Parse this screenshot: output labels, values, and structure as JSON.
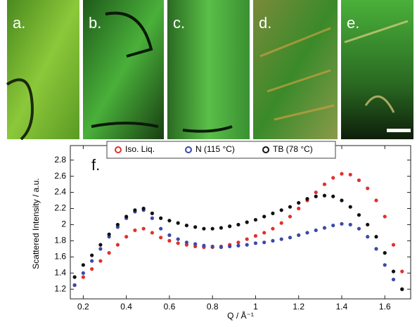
{
  "panel_labels": [
    "a.",
    "b.",
    "c.",
    "d.",
    "e."
  ],
  "chart_data": {
    "type": "scatter",
    "panel_label": "f.",
    "x_label": "Q / Å⁻¹",
    "y_label": "Scattered Intensity / a.u.",
    "x": [
      0.16,
      0.2,
      0.24,
      0.28,
      0.32,
      0.36,
      0.4,
      0.44,
      0.48,
      0.52,
      0.56,
      0.6,
      0.64,
      0.68,
      0.72,
      0.76,
      0.8,
      0.84,
      0.88,
      0.92,
      0.96,
      1.0,
      1.04,
      1.08,
      1.12,
      1.16,
      1.2,
      1.24,
      1.28,
      1.32,
      1.36,
      1.4,
      1.44,
      1.48,
      1.52,
      1.56,
      1.6,
      1.64,
      1.68
    ],
    "series": [
      {
        "name": "Iso. Liq.",
        "color": "#e3302b",
        "values": [
          1.25,
          1.35,
          1.45,
          1.55,
          1.65,
          1.75,
          1.85,
          1.93,
          1.95,
          1.9,
          1.84,
          1.8,
          1.77,
          1.75,
          1.73,
          1.72,
          1.72,
          1.73,
          1.75,
          1.78,
          1.82,
          1.86,
          1.9,
          1.95,
          2.02,
          2.1,
          2.2,
          2.3,
          2.4,
          2.5,
          2.58,
          2.63,
          2.62,
          2.55,
          2.45,
          2.3,
          2.1,
          1.75,
          1.42
        ]
      },
      {
        "name": "N (115 °C)",
        "color": "#3b49a8",
        "values": [
          1.25,
          1.4,
          1.55,
          1.7,
          1.85,
          1.97,
          2.08,
          2.16,
          2.18,
          2.08,
          1.95,
          1.87,
          1.82,
          1.78,
          1.76,
          1.74,
          1.73,
          1.72,
          1.73,
          1.74,
          1.75,
          1.77,
          1.78,
          1.8,
          1.82,
          1.84,
          1.87,
          1.9,
          1.93,
          1.96,
          1.99,
          2.01,
          2.0,
          1.95,
          1.85,
          1.7,
          1.5,
          1.32,
          1.2
        ]
      },
      {
        "name": "TB (78 °C)",
        "color": "#111111",
        "values": [
          1.35,
          1.5,
          1.62,
          1.75,
          1.88,
          2.0,
          2.1,
          2.18,
          2.2,
          2.14,
          2.08,
          2.05,
          2.02,
          1.99,
          1.97,
          1.95,
          1.95,
          1.96,
          1.98,
          2.0,
          2.03,
          2.06,
          2.1,
          2.14,
          2.18,
          2.22,
          2.27,
          2.32,
          2.35,
          2.36,
          2.35,
          2.3,
          2.22,
          2.12,
          2.0,
          1.85,
          1.65,
          1.42,
          1.2
        ]
      }
    ],
    "xlim": [
      0.14,
      1.72
    ],
    "ylim": [
      1.08,
      2.98
    ],
    "xticks": [
      0.2,
      0.4,
      0.6,
      0.8,
      1,
      1.2,
      1.4,
      1.6
    ],
    "yticks": [
      1.2,
      1.4,
      1.6,
      1.8,
      2,
      2.2,
      2.4,
      2.6,
      2.8
    ],
    "grid": false,
    "legend": "top"
  }
}
